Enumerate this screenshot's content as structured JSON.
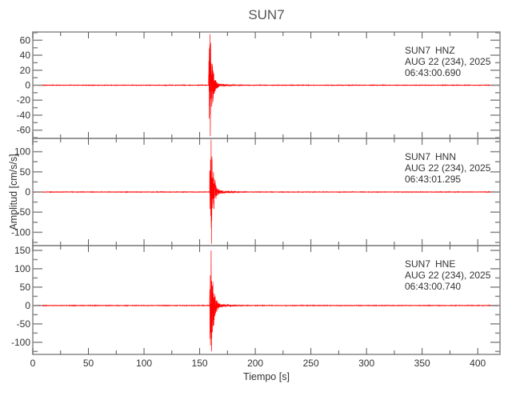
{
  "chart_data": {
    "type": "line",
    "title": "SUN7",
    "xlabel": "Tiempo [s]",
    "ylabel": "Amplitud [cm/s/s]",
    "xlim": [
      0,
      420
    ],
    "xticks": [
      0,
      50,
      100,
      150,
      200,
      250,
      300,
      350,
      400
    ],
    "line_color": "#ff0000",
    "grid": false,
    "panels": [
      {
        "station": "SUN7",
        "channel": "HNZ",
        "date": "AUG 22 (234), 2025",
        "time": "06:43:00.690",
        "ylim": [
          -71,
          71
        ],
        "yticks": [
          60,
          40,
          20,
          0,
          -20,
          -40,
          -60
        ],
        "event_onset_s": 158,
        "peak_max": 68,
        "peak_min": -68
      },
      {
        "station": "SUN7",
        "channel": "HNN",
        "date": "AUG 22 (234), 2025",
        "time": "06:43:01.295",
        "ylim": [
          -133,
          133
        ],
        "yticks": [
          100,
          50,
          0,
          -50,
          -100
        ],
        "event_onset_s": 159,
        "peak_max": 130,
        "peak_min": -128
      },
      {
        "station": "SUN7",
        "channel": "HNE",
        "date": "AUG 22 (234), 2025",
        "time": "06:43:00.740",
        "ylim": [
          -133,
          163
        ],
        "yticks": [
          150,
          100,
          50,
          0,
          -50,
          -100
        ],
        "event_onset_s": 159,
        "peak_max": 150,
        "peak_min": -125
      }
    ]
  }
}
